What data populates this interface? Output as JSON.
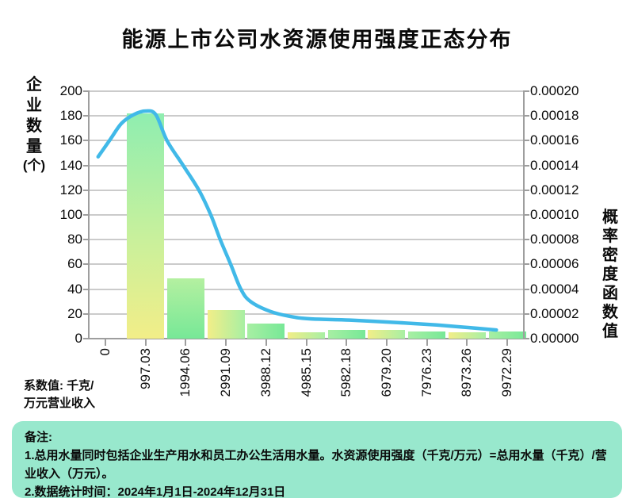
{
  "title": "能源上市公司水资源使用强度正态分布",
  "y_left_axis": {
    "label": "企业数量(个)",
    "label_chars": [
      "企",
      "业",
      "数",
      "量",
      "(个)"
    ]
  },
  "y_right_axis": {
    "label": "概率密度函数值",
    "label_chars": [
      "概",
      "率",
      "密",
      "度",
      "函",
      "数",
      "值"
    ]
  },
  "x_unit_note": {
    "line1": "系数值: 千克/",
    "line2": "万元营业收入"
  },
  "notes": {
    "lines": {
      "0": "备注:",
      "1": "1.总用水量同时包括企业生产用水和员工办公生活用水量。水资源使用强度（千克/万元）=总用水量（千克）/营业收入（万元）。",
      "2": "2.数据统计时间：2024年1月1日-2024年12月31日"
    }
  },
  "colors": {
    "line_blue": "#41b9e8",
    "grid": "#cbcbcb",
    "axis": "#9e9e9e",
    "note_panel_bg": "#98e8cd",
    "bar_yellow": "#f2ee88",
    "bar_light_green": "#a8efa3",
    "bar_green": "#77e897",
    "bar_top_green": "#8feeb0"
  },
  "chart_data": {
    "type": "bar+line",
    "title": "能源上市公司水资源使用强度正态分布",
    "x_tick_labels": [
      "0",
      "997.03",
      "1994.06",
      "2991.09",
      "3988.12",
      "4985.15",
      "5982.18",
      "6979.20",
      "7976.23",
      "8973.26",
      "9972.29"
    ],
    "x_unit": "千克/万元营业收入",
    "grid": "horizontal",
    "legend": "none",
    "y_left": {
      "label": "企业数量(个)",
      "min": 0,
      "max": 200,
      "step": 20
    },
    "y_right": {
      "label": "概率密度函数值",
      "min": 0,
      "max": 0.0002,
      "step": 2e-05,
      "decimals": 5
    },
    "bars": {
      "name": "企业数量",
      "axis": "left",
      "note": "bars centered on x ticks 997.03 through 9972.29",
      "values": [
        182,
        49,
        23,
        12,
        5,
        7,
        7,
        6,
        5,
        6
      ]
    },
    "line": {
      "name": "正态分布概率密度",
      "axis": "right",
      "points": [
        [
          -180,
          0.000147
        ],
        [
          120,
          0.000161
        ],
        [
          400,
          0.000174
        ],
        [
          700,
          0.000181
        ],
        [
          1000,
          0.000184
        ],
        [
          1250,
          0.000181
        ],
        [
          1530,
          0.00016
        ],
        [
          1930,
          0.00014
        ],
        [
          2320,
          0.00012
        ],
        [
          2615,
          0.0001
        ],
        [
          2850,
          8e-05
        ],
        [
          3110,
          6e-05
        ],
        [
          3360,
          4e-05
        ],
        [
          3600,
          3e-05
        ],
        [
          4090,
          2.2e-05
        ],
        [
          4580,
          1.8e-05
        ],
        [
          5070,
          1.6e-05
        ],
        [
          6060,
          1.5e-05
        ],
        [
          7240,
          1.3e-05
        ],
        [
          8220,
          1.1e-05
        ],
        [
          9000,
          9e-06
        ],
        [
          9700,
          7e-06
        ]
      ]
    }
  }
}
